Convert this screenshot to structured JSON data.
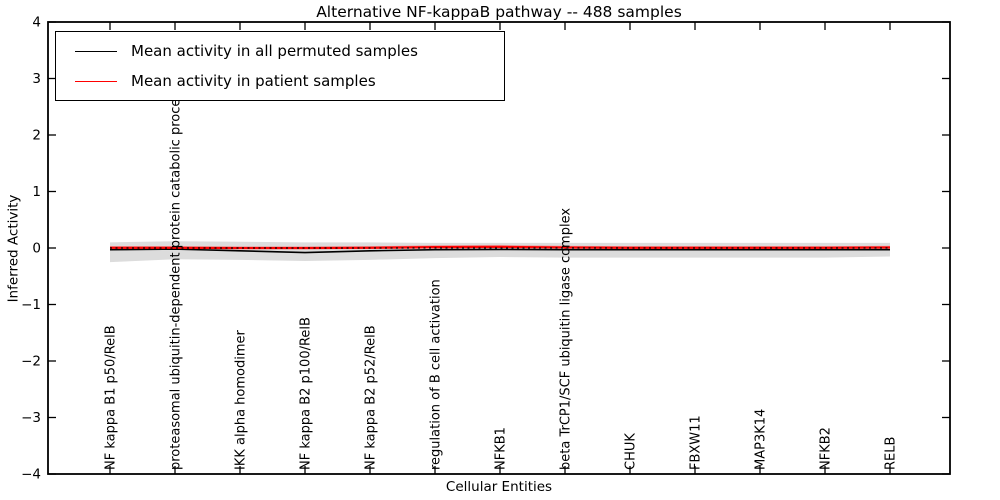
{
  "window": {
    "background": "#ffffff"
  },
  "chart_data": {
    "type": "line",
    "title": "Alternative NF-kappaB pathway -- 488 samples",
    "xlabel": "Cellular Entities",
    "ylabel": "Inferred Activity",
    "ylim": [
      -4,
      4
    ],
    "yticks": [
      4,
      3,
      2,
      1,
      0,
      -1,
      -2,
      -3,
      -4
    ],
    "grid": false,
    "legend_position": "upper-left",
    "categories": [
      "NF kappa B1 p50/RelB",
      "proteasomal ubiquitin-dependent protein catabolic process",
      "IKK alpha homodimer",
      "NF kappa B2 p100/RelB",
      "NF kappa B2 p52/RelB",
      "regulation of B cell activation",
      "NFKB1",
      "beta TrCP1/SCF ubiquitin ligase complex",
      "CHUK",
      "FBXW11",
      "MAP3K14",
      "NFKB2",
      "RELB"
    ],
    "series": [
      {
        "name": "Mean activity in all permuted samples",
        "color": "#000000",
        "style": "solid",
        "values": [
          -0.03,
          -0.02,
          -0.05,
          -0.08,
          -0.05,
          -0.03,
          -0.025,
          -0.03,
          -0.03,
          -0.03,
          -0.03,
          -0.03,
          -0.03
        ]
      },
      {
        "name": "Mean activity in patient samples",
        "color": "#ff0000",
        "style": "solid",
        "values": [
          0.005,
          0.005,
          0.0,
          0.0,
          0.005,
          0.015,
          0.02,
          0.01,
          0.005,
          0.005,
          0.005,
          0.005,
          0.01
        ]
      }
    ],
    "bands": [
      {
        "name": "permuted-samples-spread",
        "color": "#dcdcdc",
        "upper": [
          0.1,
          0.12,
          0.11,
          0.1,
          0.1,
          0.09,
          0.09,
          0.09,
          0.09,
          0.09,
          0.09,
          0.09,
          0.09
        ],
        "lower": [
          -0.25,
          -0.2,
          -0.21,
          -0.23,
          -0.21,
          -0.18,
          -0.16,
          -0.17,
          -0.17,
          -0.17,
          -0.17,
          -0.17,
          -0.15
        ]
      },
      {
        "name": "patient-samples-spread",
        "color": "rgba(255,60,60,0.35)",
        "upper": [
          0.03,
          0.03,
          0.025,
          0.025,
          0.03,
          0.05,
          0.055,
          0.04,
          0.03,
          0.03,
          0.03,
          0.03,
          0.04
        ],
        "lower": [
          -0.02,
          -0.02,
          -0.025,
          -0.025,
          -0.02,
          -0.01,
          -0.005,
          -0.01,
          -0.02,
          -0.02,
          -0.02,
          -0.02,
          -0.015
        ]
      }
    ],
    "reference_line": {
      "y": 0,
      "style": "dotted",
      "color": "#000000"
    }
  }
}
